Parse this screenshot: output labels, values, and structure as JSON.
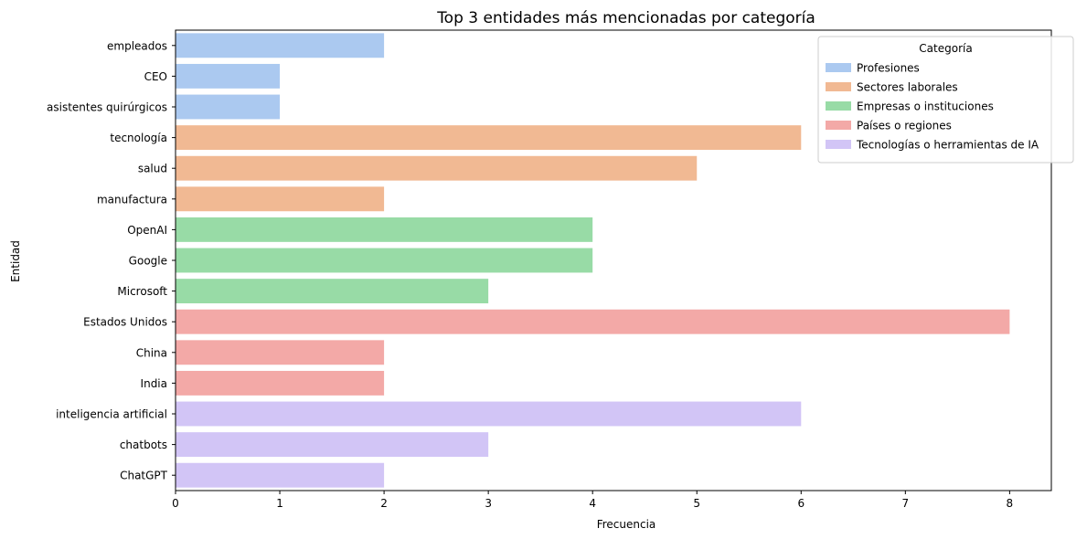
{
  "chart_data": {
    "type": "bar",
    "orientation": "horizontal",
    "title": "Top 3 entidades más mencionadas por categoría",
    "xlabel": "Frecuencia",
    "ylabel": "Entidad",
    "xlim": [
      0,
      8.4
    ],
    "xticks": [
      0,
      1,
      2,
      3,
      4,
      5,
      6,
      7,
      8
    ],
    "grid": false,
    "legend": {
      "title": "Categoría",
      "placement": "top-right",
      "entries": [
        {
          "name": "Profesiones",
          "color": "#abc9f0"
        },
        {
          "name": "Sectores laborales",
          "color": "#f1b993"
        },
        {
          "name": "Empresas o instituciones",
          "color": "#98dba6"
        },
        {
          "name": "Países o regiones",
          "color": "#f3a9a7"
        },
        {
          "name": "Tecnologías o herramientas de IA",
          "color": "#d2c5f6"
        }
      ]
    },
    "categories": [
      "empleados",
      "CEO",
      "asistentes quirúrgicos",
      "tecnología",
      "salud",
      "manufactura",
      "OpenAI",
      "Google",
      "Microsoft",
      "Estados Unidos",
      "China",
      "India",
      "inteligencia artificial",
      "chatbots",
      "ChatGPT"
    ],
    "values": [
      2,
      1,
      1,
      6,
      5,
      2,
      4,
      4,
      3,
      8,
      2,
      2,
      6,
      3,
      2
    ],
    "groups": [
      0,
      0,
      0,
      1,
      1,
      1,
      2,
      2,
      2,
      3,
      3,
      3,
      4,
      4,
      4
    ]
  }
}
